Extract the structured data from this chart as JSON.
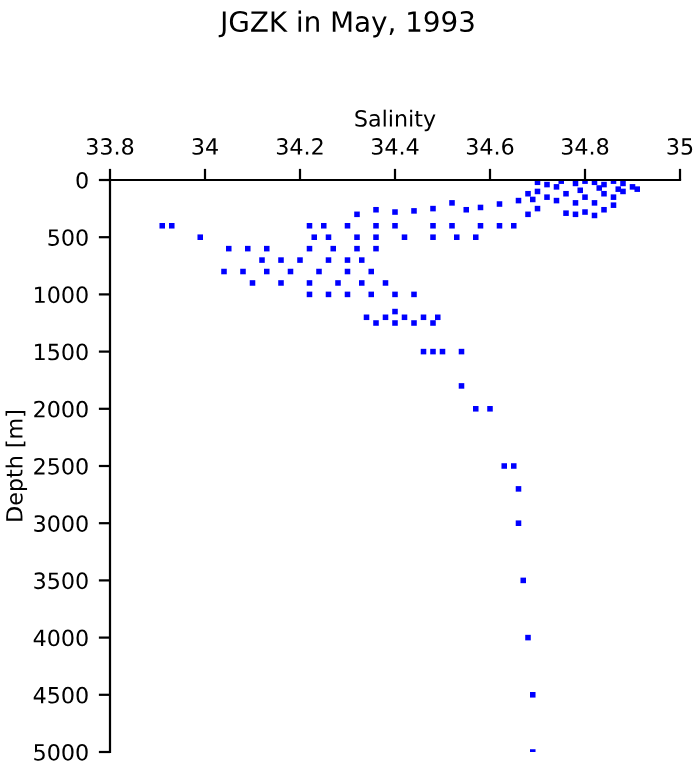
{
  "chart_data": {
    "type": "scatter",
    "title": "JGZK in May, 1993",
    "xlabel": "Salinity",
    "ylabel": "Depth [m]",
    "xlim": [
      33.8,
      35
    ],
    "xticks": [
      33.8,
      34,
      34.2,
      34.4,
      34.6,
      34.8,
      35
    ],
    "ylim": [
      5000,
      0
    ],
    "yticks": [
      0,
      500,
      1000,
      1500,
      2000,
      2500,
      3000,
      3500,
      4000,
      4500,
      5000
    ],
    "grid": false,
    "legend": false,
    "marker": "square",
    "series": [
      {
        "color": "#0000ff",
        "x": [
          34.7,
          34.72,
          34.75,
          34.78,
          34.8,
          34.82,
          34.84,
          34.86,
          34.88,
          34.9,
          34.87,
          34.83,
          34.79,
          34.74,
          34.7,
          34.68,
          34.72,
          34.76,
          34.8,
          34.84,
          34.88,
          34.91,
          34.86,
          34.82,
          34.78,
          34.74,
          34.69,
          34.66,
          34.62,
          34.58,
          34.55,
          34.52,
          34.48,
          34.44,
          34.4,
          34.36,
          34.32,
          34.7,
          34.76,
          34.8,
          34.84,
          34.86,
          34.78,
          34.82,
          34.68,
          34.22,
          34.25,
          34.3,
          34.36,
          34.4,
          34.48,
          34.52,
          34.58,
          34.62,
          34.65,
          33.91,
          33.93,
          33.99,
          34.23,
          34.26,
          34.32,
          34.36,
          34.42,
          34.48,
          34.53,
          34.57,
          34.05,
          34.09,
          34.13,
          34.22,
          34.27,
          34.32,
          34.36,
          34.12,
          34.16,
          34.2,
          34.26,
          34.3,
          34.33,
          34.04,
          34.08,
          34.13,
          34.18,
          34.24,
          34.3,
          34.35,
          34.1,
          34.16,
          34.22,
          34.28,
          34.33,
          34.38,
          34.22,
          34.26,
          34.3,
          34.35,
          34.4,
          34.44,
          34.4,
          34.34,
          34.38,
          34.42,
          34.46,
          34.49,
          34.36,
          34.4,
          34.44,
          34.48,
          34.46,
          34.48,
          34.5,
          34.54,
          34.54,
          34.57,
          34.6,
          34.63,
          34.65,
          34.66,
          34.66,
          34.67,
          34.68,
          34.69,
          34.69
        ],
        "values": [
          20,
          40,
          10,
          30,
          10,
          20,
          40,
          10,
          30,
          60,
          80,
          70,
          90,
          60,
          100,
          120,
          150,
          120,
          150,
          120,
          100,
          80,
          150,
          200,
          200,
          180,
          170,
          180,
          210,
          240,
          260,
          200,
          250,
          270,
          280,
          260,
          300,
          250,
          290,
          280,
          260,
          220,
          300,
          310,
          300,
          400,
          400,
          400,
          400,
          400,
          400,
          400,
          400,
          400,
          400,
          400,
          400,
          500,
          500,
          500,
          500,
          500,
          500,
          500,
          500,
          500,
          600,
          600,
          600,
          600,
          600,
          600,
          600,
          700,
          700,
          700,
          700,
          700,
          700,
          800,
          800,
          800,
          800,
          800,
          800,
          800,
          900,
          900,
          900,
          900,
          900,
          900,
          1000,
          1000,
          1000,
          1000,
          1000,
          1000,
          1150,
          1200,
          1200,
          1200,
          1200,
          1200,
          1250,
          1250,
          1250,
          1250,
          1500,
          1500,
          1500,
          1500,
          1800,
          2000,
          2000,
          2500,
          2500,
          2700,
          3000,
          3500,
          4000,
          4500,
          5000
        ]
      }
    ]
  }
}
